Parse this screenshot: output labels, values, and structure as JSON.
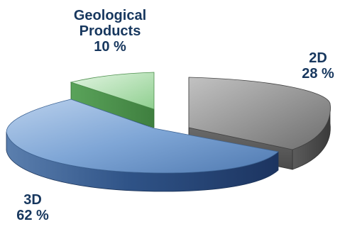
{
  "chart_data": {
    "type": "pie",
    "style": "3d-exploded",
    "categories": [
      "2D",
      "3D",
      "Geological Products"
    ],
    "values": [
      28,
      62,
      10
    ],
    "value_labels": [
      "28 %",
      "62 %",
      "10 %"
    ],
    "colors": [
      "#808080",
      "#4f81bd",
      "#9bd39b"
    ],
    "title": "",
    "legend": "none (data labels on slices)"
  },
  "labels": {
    "geo_line1": "Geological",
    "geo_line2": "Products",
    "geo_value": "10 %",
    "d2_name": "2D",
    "d2_value": "28 %",
    "d3_name": "3D",
    "d3_value": "62 %"
  }
}
